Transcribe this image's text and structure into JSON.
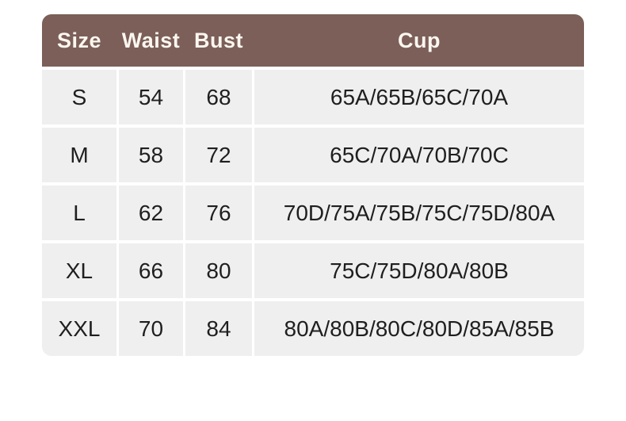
{
  "colors": {
    "header_bg": "#7b5f58",
    "header_text": "#fcf6f0",
    "cell_bg": "#f0eff0",
    "cell_text": "#1f1f1f",
    "page_bg": "#ffffff"
  },
  "table": {
    "headers": [
      "Size",
      "Waist",
      "Bust",
      "Cup"
    ],
    "rows": [
      {
        "size": "S",
        "waist": "54",
        "bust": "68",
        "cup": "65A/65B/65C/70A"
      },
      {
        "size": "M",
        "waist": "58",
        "bust": "72",
        "cup": "65C/70A/70B/70C"
      },
      {
        "size": "L",
        "waist": "62",
        "bust": "76",
        "cup": "70D/75A/75B/75C/75D/80A"
      },
      {
        "size": "XL",
        "waist": "66",
        "bust": "80",
        "cup": "75C/75D/80A/80B"
      },
      {
        "size": "XXL",
        "waist": "70",
        "bust": "84",
        "cup": "80A/80B/80C/80D/85A/85B"
      }
    ]
  },
  "chart_data": {
    "type": "table",
    "columns": [
      "Size",
      "Waist",
      "Bust",
      "Cup"
    ],
    "rows": [
      [
        "S",
        "54",
        "68",
        "65A/65B/65C/70A"
      ],
      [
        "M",
        "58",
        "72",
        "65C/70A/70B/70C"
      ],
      [
        "L",
        "62",
        "76",
        "70D/75A/75B/75C/75D/80A"
      ],
      [
        "XL",
        "66",
        "80",
        "75C/75D/80A/80B"
      ],
      [
        "XXL",
        "70",
        "84",
        "80A/80B/80C/80D/85A/85B"
      ]
    ],
    "title": "",
    "legend": "none",
    "grid": "white gaps between gray cells"
  }
}
